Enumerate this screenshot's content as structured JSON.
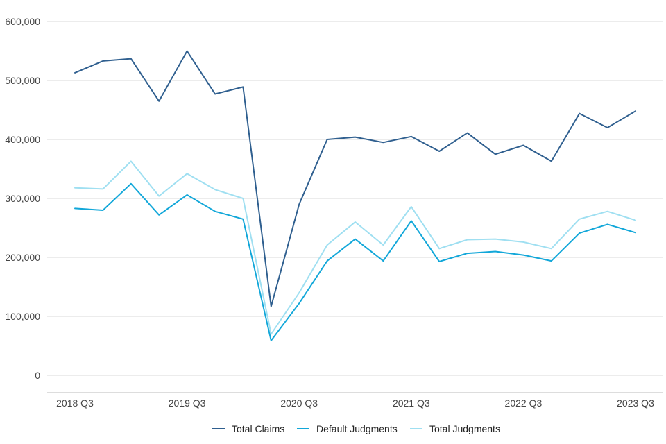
{
  "chart_data": {
    "type": "line",
    "title": "",
    "xlabel": "",
    "ylabel": "",
    "ylim": [
      0,
      600000
    ],
    "yticks": [
      0,
      100000,
      200000,
      300000,
      400000,
      500000,
      600000
    ],
    "ytick_labels": [
      "0",
      "100,000",
      "200,000",
      "300,000",
      "400,000",
      "500,000",
      "600,000"
    ],
    "x": [
      "2018 Q3",
      "2018 Q4",
      "2019 Q1",
      "2019 Q2",
      "2019 Q3",
      "2019 Q4",
      "2020 Q1",
      "2020 Q2",
      "2020 Q3",
      "2020 Q4",
      "2021 Q1",
      "2021 Q2",
      "2021 Q3",
      "2021 Q4",
      "2022 Q1",
      "2022 Q2",
      "2022 Q3",
      "2022 Q4",
      "2023 Q1",
      "2023 Q2",
      "2023 Q3"
    ],
    "xtick_labels": [
      "2018 Q3",
      "2019 Q3",
      "2020 Q3",
      "2021 Q3",
      "2022 Q3",
      "2023 Q3"
    ],
    "grid": "horizontal",
    "legend_position": "bottom",
    "series": [
      {
        "name": "Total Claims",
        "color": "#2f5f8f",
        "values": [
          513000,
          533000,
          537000,
          465000,
          550000,
          477000,
          489000,
          117000,
          290000,
          400000,
          404000,
          395000,
          405000,
          380000,
          411000,
          375000,
          390000,
          363000,
          444000,
          420000,
          448000
        ]
      },
      {
        "name": "Default Judgments",
        "color": "#12a7d9",
        "values": [
          283000,
          280000,
          325000,
          272000,
          306000,
          278000,
          265000,
          59000,
          122000,
          194000,
          231000,
          194000,
          262000,
          193000,
          207000,
          210000,
          204000,
          194000,
          241000,
          256000,
          242000
        ]
      },
      {
        "name": "Total Judgments",
        "color": "#9fdff1",
        "values": [
          318000,
          316000,
          363000,
          304000,
          342000,
          315000,
          300000,
          70000,
          140000,
          221000,
          260000,
          221000,
          286000,
          215000,
          230000,
          231000,
          226000,
          215000,
          265000,
          278000,
          263000
        ]
      }
    ]
  }
}
